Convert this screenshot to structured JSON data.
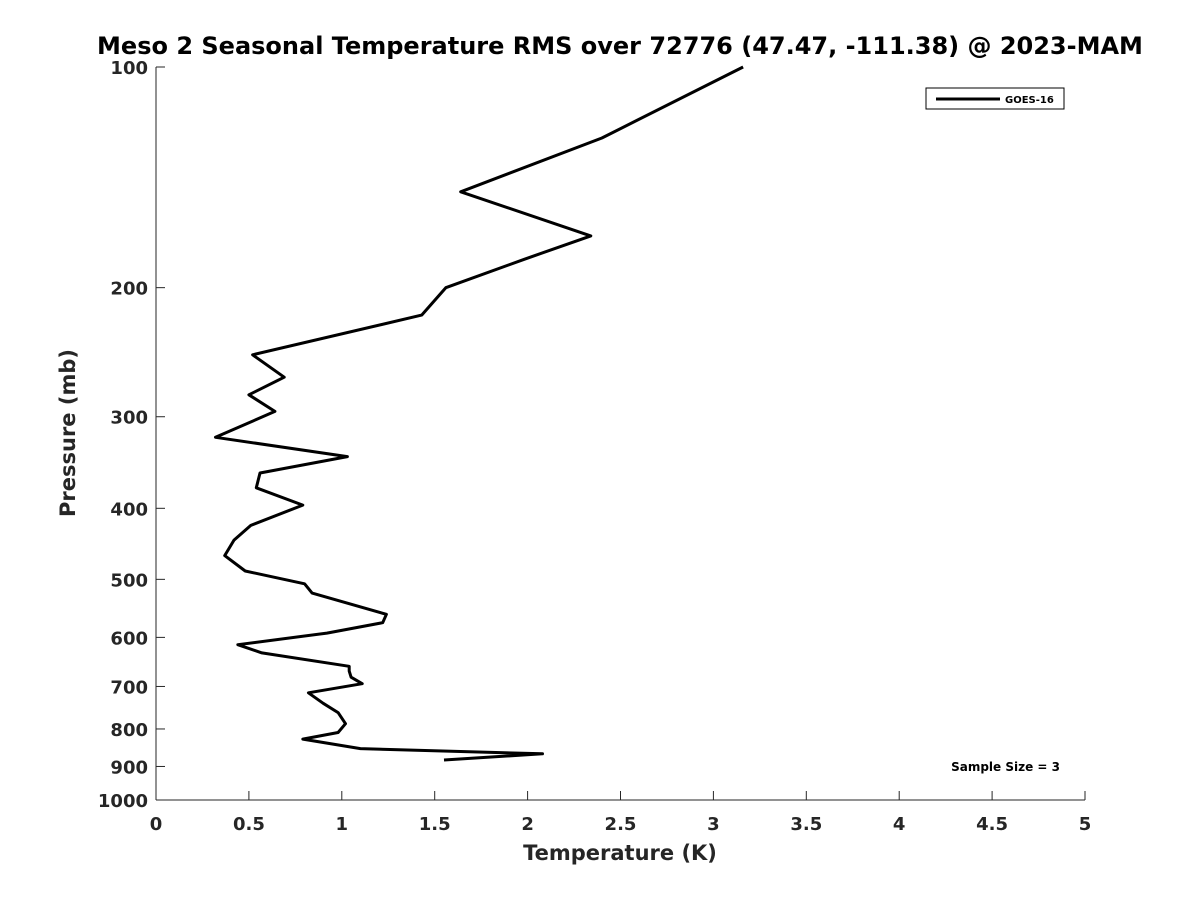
{
  "chart_data": {
    "type": "line",
    "title": "Meso 2 Seasonal Temperature RMS over 72776 (47.47, -111.38) @ 2023-MAM",
    "xlabel": "Temperature (K)",
    "ylabel": "Pressure (mb)",
    "xlim": [
      0,
      5
    ],
    "ylim": [
      100,
      1000
    ],
    "y_scale": "log",
    "y_reversed": true,
    "x_ticks": [
      "0",
      "0.5",
      "1",
      "1.5",
      "2",
      "2.5",
      "3",
      "3.5",
      "4",
      "4.5",
      "5"
    ],
    "y_ticks": [
      "100",
      "200",
      "300",
      "400",
      "500",
      "600",
      "700",
      "800",
      "900",
      "1000"
    ],
    "grid": false,
    "legend": {
      "position": "top-right",
      "entries": [
        "GOES-16"
      ]
    },
    "annotation": "Sample Size = 3",
    "series": [
      {
        "name": "GOES-16",
        "color": "#000000",
        "points": [
          [
            3.16,
            100
          ],
          [
            2.4,
            125
          ],
          [
            1.64,
            148
          ],
          [
            2.34,
            170
          ],
          [
            1.98,
            183
          ],
          [
            1.56,
            200
          ],
          [
            1.43,
            218
          ],
          [
            0.52,
            247
          ],
          [
            0.69,
            265
          ],
          [
            0.5,
            280
          ],
          [
            0.64,
            295
          ],
          [
            0.32,
            320
          ],
          [
            1.03,
            340
          ],
          [
            0.56,
            358
          ],
          [
            0.54,
            375
          ],
          [
            0.79,
            396
          ],
          [
            0.51,
            422
          ],
          [
            0.42,
            442
          ],
          [
            0.37,
            464
          ],
          [
            0.48,
            487
          ],
          [
            0.8,
            507
          ],
          [
            0.84,
            522
          ],
          [
            1.24,
            558
          ],
          [
            1.22,
            573
          ],
          [
            0.92,
            592
          ],
          [
            0.44,
            614
          ],
          [
            0.57,
            630
          ],
          [
            1.04,
            657
          ],
          [
            1.04,
            667
          ],
          [
            1.05,
            680
          ],
          [
            1.11,
            694
          ],
          [
            0.82,
            714
          ],
          [
            0.9,
            738
          ],
          [
            0.98,
            760
          ],
          [
            1.02,
            787
          ],
          [
            0.98,
            809
          ],
          [
            0.79,
            826
          ],
          [
            1.1,
            851
          ],
          [
            2.08,
            865
          ],
          [
            1.55,
            882
          ]
        ]
      }
    ]
  }
}
